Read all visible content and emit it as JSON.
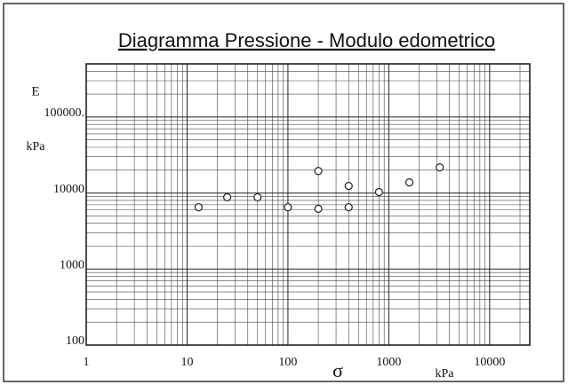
{
  "chart_data": {
    "type": "scatter",
    "title": "Diagramma  Pressione - Modulo edometrico",
    "y_label": "E",
    "y_unit": "kPa",
    "x_label": "σ",
    "x_unit": "kPa",
    "x_log": true,
    "y_log": true,
    "grid": true,
    "minor_grid": true,
    "xlim": [
      1,
      25000
    ],
    "ylim": [
      100,
      500000
    ],
    "xticks": [
      1,
      10,
      100,
      1000,
      10000
    ],
    "yticks": [
      100,
      1000,
      10000,
      {
        "value": 100000,
        "label": "100000."
      }
    ],
    "series": [
      {
        "name": null,
        "color": "#222222",
        "x": [
          13,
          25,
          50,
          100,
          200,
          200,
          400,
          400,
          800,
          1600,
          3200
        ],
        "values": [
          6500,
          8800,
          8800,
          6500,
          6200,
          19500,
          12400,
          6500,
          10300,
          13800,
          21800
        ]
      }
    ]
  }
}
